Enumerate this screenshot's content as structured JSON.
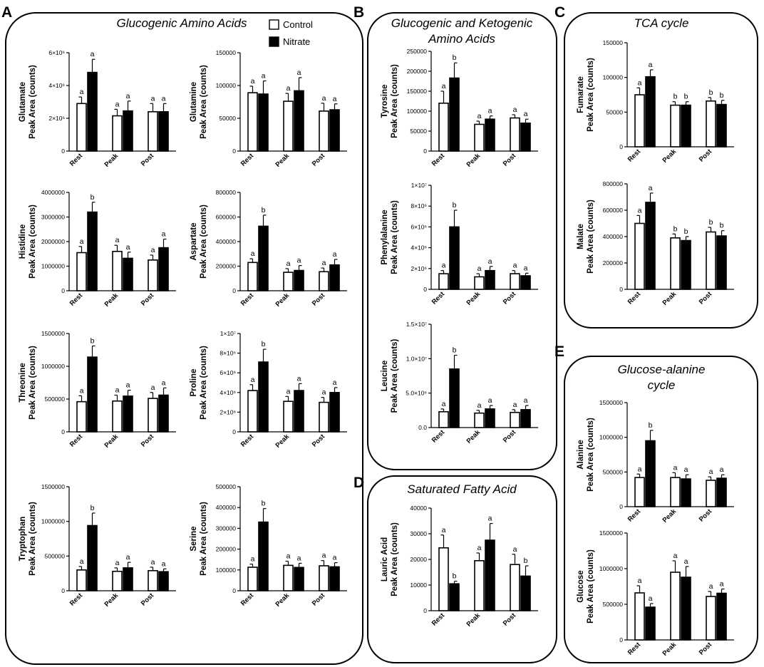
{
  "panels": {
    "A": {
      "letter": "A",
      "title": "Glucogenic Amino Acids"
    },
    "B": {
      "letter": "B",
      "title_line1": "Glucogenic and Ketogenic",
      "title_line2": "Amino Acids"
    },
    "C": {
      "letter": "C",
      "title": "TCA cycle"
    },
    "D": {
      "letter": "D",
      "title": "Saturated Fatty Acid"
    },
    "E": {
      "letter": "E",
      "title_line1": "Glucose-alanine",
      "title_line2": "cycle"
    }
  },
  "legend": {
    "control": "Control",
    "nitrate": "Nitrate"
  },
  "colors": {
    "control": "#ffffff",
    "nitrate": "#000000",
    "axis": "#000000"
  },
  "chart_data": [
    {
      "id": "glutamate",
      "type": "bar",
      "metabolite": "Glutamate",
      "ylabel": "Peak Area (counts)",
      "categories": [
        "Rest",
        "Peak",
        "Post"
      ],
      "ylim": [
        0,
        6000000
      ],
      "yticks": [
        0,
        2000000,
        4000000,
        6000000
      ],
      "ytick_labels": [
        "0",
        "2×10⁶",
        "4×10⁶",
        "6×10⁶"
      ],
      "series": [
        {
          "name": "Control",
          "values": [
            2900000,
            2150000,
            2400000
          ],
          "errors": [
            400000,
            400000,
            500000
          ]
        },
        {
          "name": "Nitrate",
          "values": [
            4800000,
            2450000,
            2400000
          ],
          "errors": [
            800000,
            600000,
            500000
          ]
        }
      ],
      "letters": [
        [
          "a",
          "a"
        ],
        [
          "a",
          "a"
        ],
        [
          "a",
          "a"
        ]
      ]
    },
    {
      "id": "glutamine",
      "type": "bar",
      "metabolite": "Glutamine",
      "ylabel": "Peak Area (counts)",
      "categories": [
        "Rest",
        "Peak",
        "Post"
      ],
      "ylim": [
        0,
        150000
      ],
      "yticks": [
        0,
        50000,
        100000,
        150000
      ],
      "ytick_labels": [
        "0",
        "50000",
        "100000",
        "150000"
      ],
      "series": [
        {
          "name": "Control",
          "values": [
            89000,
            76000,
            61000
          ],
          "errors": [
            10000,
            12000,
            12000
          ]
        },
        {
          "name": "Nitrate",
          "values": [
            87000,
            92000,
            63000
          ],
          "errors": [
            20000,
            20000,
            9000
          ]
        }
      ],
      "letters": [
        [
          "a",
          "a"
        ],
        [
          "a",
          "a"
        ],
        [
          "a",
          "a"
        ]
      ]
    },
    {
      "id": "histidine",
      "type": "bar",
      "metabolite": "Histidine",
      "ylabel": "Peak Area (counts)",
      "categories": [
        "Rest",
        "Peak",
        "Post"
      ],
      "ylim": [
        0,
        4000000
      ],
      "yticks": [
        0,
        1000000,
        2000000,
        3000000,
        4000000
      ],
      "ytick_labels": [
        "0",
        "1000000",
        "2000000",
        "3000000",
        "4000000"
      ],
      "series": [
        {
          "name": "Control",
          "values": [
            1550000,
            1600000,
            1250000
          ],
          "errors": [
            250000,
            250000,
            200000
          ]
        },
        {
          "name": "Nitrate",
          "values": [
            3200000,
            1320000,
            1750000
          ],
          "errors": [
            400000,
            250000,
            350000
          ]
        }
      ],
      "letters": [
        [
          "a",
          "b"
        ],
        [
          "a",
          "a"
        ],
        [
          "a",
          "a"
        ]
      ]
    },
    {
      "id": "aspartate",
      "type": "bar",
      "metabolite": "Aspartate",
      "ylabel": "Peak Area (counts)",
      "categories": [
        "Rest",
        "Peak",
        "Post"
      ],
      "ylim": [
        0,
        800000
      ],
      "yticks": [
        0,
        200000,
        400000,
        600000,
        800000
      ],
      "ytick_labels": [
        "0",
        "200000",
        "400000",
        "600000",
        "800000"
      ],
      "series": [
        {
          "name": "Control",
          "values": [
            230000,
            150000,
            155000
          ],
          "errors": [
            30000,
            30000,
            30000
          ]
        },
        {
          "name": "Nitrate",
          "values": [
            525000,
            165000,
            210000
          ],
          "errors": [
            90000,
            40000,
            45000
          ]
        }
      ],
      "letters": [
        [
          "a",
          "b"
        ],
        [
          "a",
          "a"
        ],
        [
          "a",
          "a"
        ]
      ]
    },
    {
      "id": "threonine",
      "type": "bar",
      "metabolite": "Threonine",
      "ylabel": "Peak Area (counts)",
      "categories": [
        "Rest",
        "Peak",
        "Post"
      ],
      "ylim": [
        0,
        1500000
      ],
      "yticks": [
        0,
        500000,
        1000000,
        1500000
      ],
      "ytick_labels": [
        "0",
        "500000",
        "1000000",
        "1500000"
      ],
      "series": [
        {
          "name": "Control",
          "values": [
            460000,
            470000,
            510000
          ],
          "errors": [
            90000,
            90000,
            90000
          ]
        },
        {
          "name": "Nitrate",
          "values": [
            1140000,
            545000,
            560000
          ],
          "errors": [
            170000,
            90000,
            110000
          ]
        }
      ],
      "letters": [
        [
          "a",
          "b"
        ],
        [
          "a",
          "a"
        ],
        [
          "a",
          "a"
        ]
      ]
    },
    {
      "id": "proline",
      "type": "bar",
      "metabolite": "Proline",
      "ylabel": "Peak Area (counts)",
      "categories": [
        "Rest",
        "Peak",
        "Post"
      ],
      "ylim": [
        0,
        10000000
      ],
      "yticks": [
        0,
        2000000,
        4000000,
        6000000,
        8000000,
        10000000
      ],
      "ytick_labels": [
        "0",
        "2×10⁶",
        "4×10⁶",
        "6×10⁶",
        "8×10⁶",
        "1×10⁷"
      ],
      "series": [
        {
          "name": "Control",
          "values": [
            4200000,
            3100000,
            3000000
          ],
          "errors": [
            600000,
            500000,
            500000
          ]
        },
        {
          "name": "Nitrate",
          "values": [
            7100000,
            4200000,
            4000000
          ],
          "errors": [
            1300000,
            700000,
            500000
          ]
        }
      ],
      "letters": [
        [
          "a",
          "b"
        ],
        [
          "a",
          "a"
        ],
        [
          "a",
          "a"
        ]
      ]
    },
    {
      "id": "tryptophan",
      "type": "bar",
      "metabolite": "Tryptophan",
      "ylabel": "Peak Area (counts)",
      "categories": [
        "Rest",
        "Peak",
        "Post"
      ],
      "ylim": [
        0,
        1500000
      ],
      "yticks": [
        0,
        500000,
        1000000,
        1500000
      ],
      "ytick_labels": [
        "0",
        "500000",
        "1000000",
        "1500000"
      ],
      "series": [
        {
          "name": "Control",
          "values": [
            300000,
            280000,
            290000
          ],
          "errors": [
            50000,
            50000,
            50000
          ]
        },
        {
          "name": "Nitrate",
          "values": [
            940000,
            330000,
            275000
          ],
          "errors": [
            180000,
            80000,
            40000
          ]
        }
      ],
      "letters": [
        [
          "a",
          "b"
        ],
        [
          "a",
          "a"
        ],
        [
          "a",
          "a"
        ]
      ]
    },
    {
      "id": "serine",
      "type": "bar",
      "metabolite": "Serine",
      "ylabel": "Peak Area (counts)",
      "categories": [
        "Rest",
        "Peak",
        "Post"
      ],
      "ylim": [
        0,
        500000
      ],
      "yticks": [
        0,
        100000,
        200000,
        300000,
        400000,
        500000
      ],
      "ytick_labels": [
        "0",
        "100000",
        "200000",
        "300000",
        "400000",
        "500000"
      ],
      "series": [
        {
          "name": "Control",
          "values": [
            113000,
            122000,
            120000
          ],
          "errors": [
            15000,
            20000,
            25000
          ]
        },
        {
          "name": "Nitrate",
          "values": [
            330000,
            112000,
            115000
          ],
          "errors": [
            65000,
            20000,
            20000
          ]
        }
      ],
      "letters": [
        [
          "a",
          "b"
        ],
        [
          "a",
          "a"
        ],
        [
          "a",
          "a"
        ]
      ]
    },
    {
      "id": "tyrosine",
      "type": "bar",
      "metabolite": "Tyrosine",
      "ylabel": "Peak Area (counts)",
      "categories": [
        "Rest",
        "Peak",
        "Post"
      ],
      "ylim": [
        0,
        250000
      ],
      "yticks": [
        0,
        50000,
        100000,
        150000,
        200000,
        250000
      ],
      "ytick_labels": [
        "0",
        "50000",
        "100000",
        "150000",
        "200000",
        "250000"
      ],
      "series": [
        {
          "name": "Control",
          "values": [
            120000,
            67000,
            83000
          ],
          "errors": [
            30000,
            8000,
            8000
          ]
        },
        {
          "name": "Nitrate",
          "values": [
            183000,
            80000,
            70000
          ],
          "errors": [
            38000,
            8000,
            10000
          ]
        }
      ],
      "letters": [
        [
          "a",
          "b"
        ],
        [
          "a",
          "a"
        ],
        [
          "a",
          "a"
        ]
      ]
    },
    {
      "id": "phenylalanine",
      "type": "bar",
      "metabolite": "Phenylalanine",
      "ylabel": "Peak Area (counts)",
      "categories": [
        "Rest",
        "Peak",
        "Post"
      ],
      "ylim": [
        0,
        10000000
      ],
      "yticks": [
        0,
        2000000,
        4000000,
        6000000,
        8000000,
        10000000
      ],
      "ytick_labels": [
        "0",
        "2×10⁶",
        "4×10⁶",
        "6×10⁶",
        "8×10⁶",
        "1×10⁷"
      ],
      "series": [
        {
          "name": "Control",
          "values": [
            1500000,
            1200000,
            1500000
          ],
          "errors": [
            300000,
            300000,
            300000
          ]
        },
        {
          "name": "Nitrate",
          "values": [
            6000000,
            1800000,
            1300000
          ],
          "errors": [
            1600000,
            400000,
            250000
          ]
        }
      ],
      "letters": [
        [
          "a",
          "b"
        ],
        [
          "a",
          "a"
        ],
        [
          "a",
          "a"
        ]
      ]
    },
    {
      "id": "leucine",
      "type": "bar",
      "metabolite": "Leucine",
      "ylabel": "Peak Area (counts)",
      "categories": [
        "Rest",
        "Peak",
        "Post"
      ],
      "ylim": [
        0,
        15000000
      ],
      "yticks": [
        0,
        5000000,
        10000000,
        15000000
      ],
      "ytick_labels": [
        "0.0",
        "5.0×10⁶",
        "1.0×10⁷",
        "1.5×10⁷"
      ],
      "series": [
        {
          "name": "Control",
          "values": [
            2300000,
            2100000,
            2200000
          ],
          "errors": [
            400000,
            400000,
            400000
          ]
        },
        {
          "name": "Nitrate",
          "values": [
            8500000,
            2700000,
            2600000
          ],
          "errors": [
            2000000,
            500000,
            600000
          ]
        }
      ],
      "letters": [
        [
          "a",
          "b"
        ],
        [
          "a",
          "a"
        ],
        [
          "a",
          "a"
        ]
      ]
    },
    {
      "id": "fumarate",
      "type": "bar",
      "metabolite": "Fumarate",
      "ylabel": "Peak Area (counts)",
      "categories": [
        "Rest",
        "Peak",
        "Post"
      ],
      "ylim": [
        0,
        150000
      ],
      "yticks": [
        0,
        50000,
        100000,
        150000
      ],
      "ytick_labels": [
        "0",
        "50000",
        "100000",
        "150000"
      ],
      "series": [
        {
          "name": "Control",
          "values": [
            75000,
            60000,
            66000
          ],
          "errors": [
            10000,
            5000,
            5000
          ]
        },
        {
          "name": "Nitrate",
          "values": [
            101000,
            60000,
            61000
          ],
          "errors": [
            10000,
            5000,
            6000
          ]
        }
      ],
      "letters": [
        [
          "a",
          "a"
        ],
        [
          "b",
          "b"
        ],
        [
          "b",
          "b"
        ]
      ]
    },
    {
      "id": "malate",
      "type": "bar",
      "metabolite": "Malate",
      "ylabel": "Peak Area (counts)",
      "categories": [
        "Rest",
        "Peak",
        "Post"
      ],
      "ylim": [
        0,
        800000
      ],
      "yticks": [
        0,
        200000,
        400000,
        600000,
        800000
      ],
      "ytick_labels": [
        "0",
        "200000",
        "400000",
        "600000",
        "800000"
      ],
      "series": [
        {
          "name": "Control",
          "values": [
            500000,
            390000,
            435000
          ],
          "errors": [
            60000,
            30000,
            35000
          ]
        },
        {
          "name": "Nitrate",
          "values": [
            660000,
            370000,
            405000
          ],
          "errors": [
            70000,
            30000,
            40000
          ]
        }
      ],
      "letters": [
        [
          "a",
          "a"
        ],
        [
          "b",
          "b"
        ],
        [
          "b",
          "b"
        ]
      ]
    },
    {
      "id": "lauric",
      "type": "bar",
      "metabolite": "Lauric Acid",
      "ylabel": "Peak Area (counts)",
      "categories": [
        "Rest",
        "Peak",
        "Post"
      ],
      "ylim": [
        0,
        40000
      ],
      "yticks": [
        0,
        10000,
        20000,
        30000,
        40000
      ],
      "ytick_labels": [
        "0",
        "10000",
        "20000",
        "30000",
        "40000"
      ],
      "series": [
        {
          "name": "Control",
          "values": [
            24500,
            19500,
            18000
          ],
          "errors": [
            5000,
            3000,
            4000
          ]
        },
        {
          "name": "Nitrate",
          "values": [
            10500,
            27500,
            13500
          ],
          "errors": [
            1000,
            6500,
            4000
          ]
        }
      ],
      "letters": [
        [
          "a",
          "b"
        ],
        [
          "a",
          "a"
        ],
        [
          "a",
          "b"
        ]
      ]
    },
    {
      "id": "alanine",
      "type": "bar",
      "metabolite": "Alanine",
      "ylabel": "Peak Area (counts)",
      "categories": [
        "Rest",
        "Peak",
        "Post"
      ],
      "ylim": [
        0,
        1500000
      ],
      "yticks": [
        0,
        500000,
        1000000,
        1500000
      ],
      "ytick_labels": [
        "0",
        "500000",
        "1000000",
        "1500000"
      ],
      "series": [
        {
          "name": "Control",
          "values": [
            420000,
            420000,
            380000
          ],
          "errors": [
            50000,
            70000,
            50000
          ]
        },
        {
          "name": "Nitrate",
          "values": [
            950000,
            400000,
            410000
          ],
          "errors": [
            150000,
            60000,
            50000
          ]
        }
      ],
      "letters": [
        [
          "a",
          "b"
        ],
        [
          "a",
          "a"
        ],
        [
          "a",
          "a"
        ]
      ]
    },
    {
      "id": "glucose",
      "type": "bar",
      "metabolite": "Glucose",
      "ylabel": "Peak Area (counts)",
      "categories": [
        "Rest",
        "Peak",
        "Post"
      ],
      "ylim": [
        0,
        1500000
      ],
      "yticks": [
        0,
        500000,
        1000000,
        1500000
      ],
      "ytick_labels": [
        "0",
        "500000",
        "1000000",
        "1500000"
      ],
      "series": [
        {
          "name": "Control",
          "values": [
            660000,
            950000,
            610000
          ],
          "errors": [
            100000,
            160000,
            70000
          ]
        },
        {
          "name": "Nitrate",
          "values": [
            460000,
            880000,
            655000
          ],
          "errors": [
            50000,
            150000,
            60000
          ]
        }
      ],
      "letters": [
        [
          "a",
          "a"
        ],
        [
          "a",
          "a"
        ],
        [
          "a",
          "a"
        ]
      ]
    }
  ]
}
